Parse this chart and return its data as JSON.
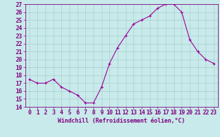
{
  "x": [
    0,
    1,
    2,
    3,
    4,
    5,
    6,
    7,
    8,
    9,
    10,
    11,
    12,
    13,
    14,
    15,
    16,
    17,
    18,
    19,
    20,
    21,
    22,
    23
  ],
  "y": [
    17.5,
    17.0,
    17.0,
    17.5,
    16.5,
    16.0,
    15.5,
    14.5,
    14.5,
    16.5,
    19.5,
    21.5,
    23.0,
    24.5,
    25.0,
    25.5,
    26.5,
    27.0,
    27.0,
    26.0,
    22.5,
    21.0,
    20.0,
    19.5
  ],
  "xlabel": "Windchill (Refroidissement éolien,°C)",
  "ylim": [
    14,
    27
  ],
  "xlim": [
    -0.5,
    23.5
  ],
  "yticks": [
    14,
    15,
    16,
    17,
    18,
    19,
    20,
    21,
    22,
    23,
    24,
    25,
    26,
    27
  ],
  "xticks": [
    0,
    1,
    2,
    3,
    4,
    5,
    6,
    7,
    8,
    9,
    10,
    11,
    12,
    13,
    14,
    15,
    16,
    17,
    18,
    19,
    20,
    21,
    22,
    23
  ],
  "line_color": "#990099",
  "marker_color": "#990099",
  "bg_color": "#c8eaea",
  "grid_color": "#a8cece",
  "font_color": "#800080",
  "tick_font_size": 6,
  "xlabel_font_size": 6
}
